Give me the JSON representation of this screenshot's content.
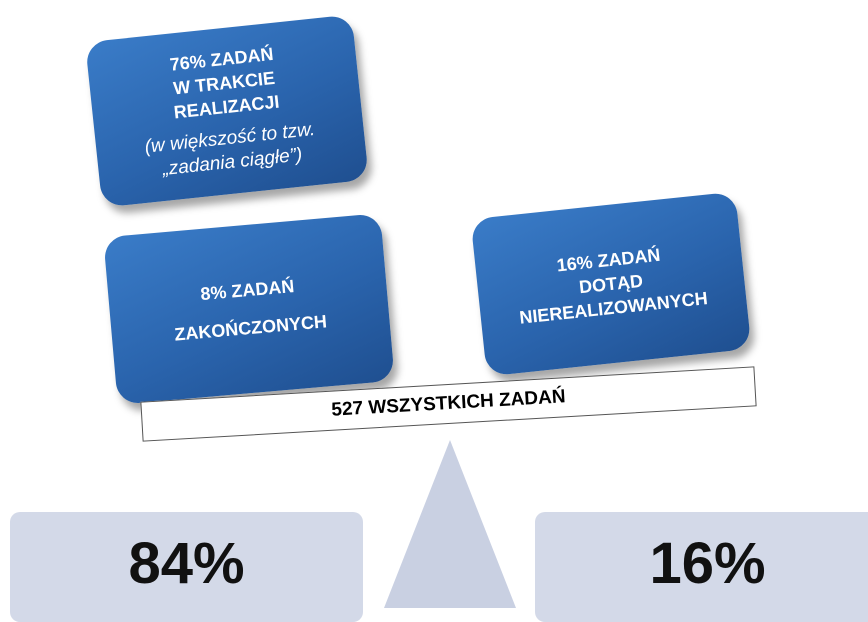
{
  "boxes": [
    {
      "lines": [
        "76% ZADAŃ",
        "W TRAKCIE",
        "REALIZACJI"
      ],
      "note": [
        "(w większość to tzw.",
        "„zadania ciągłe”)"
      ]
    },
    {
      "lines": [
        "8% ZADAŃ",
        "ZAKOŃCZONYCH"
      ]
    },
    {
      "lines": [
        "16% ZADAŃ",
        "DOTĄD",
        "NIEREALIZOWANYCH"
      ]
    }
  ],
  "beam": "527 WSZYSTKICH ZADAŃ",
  "panels": [
    "84%",
    "16%"
  ]
}
